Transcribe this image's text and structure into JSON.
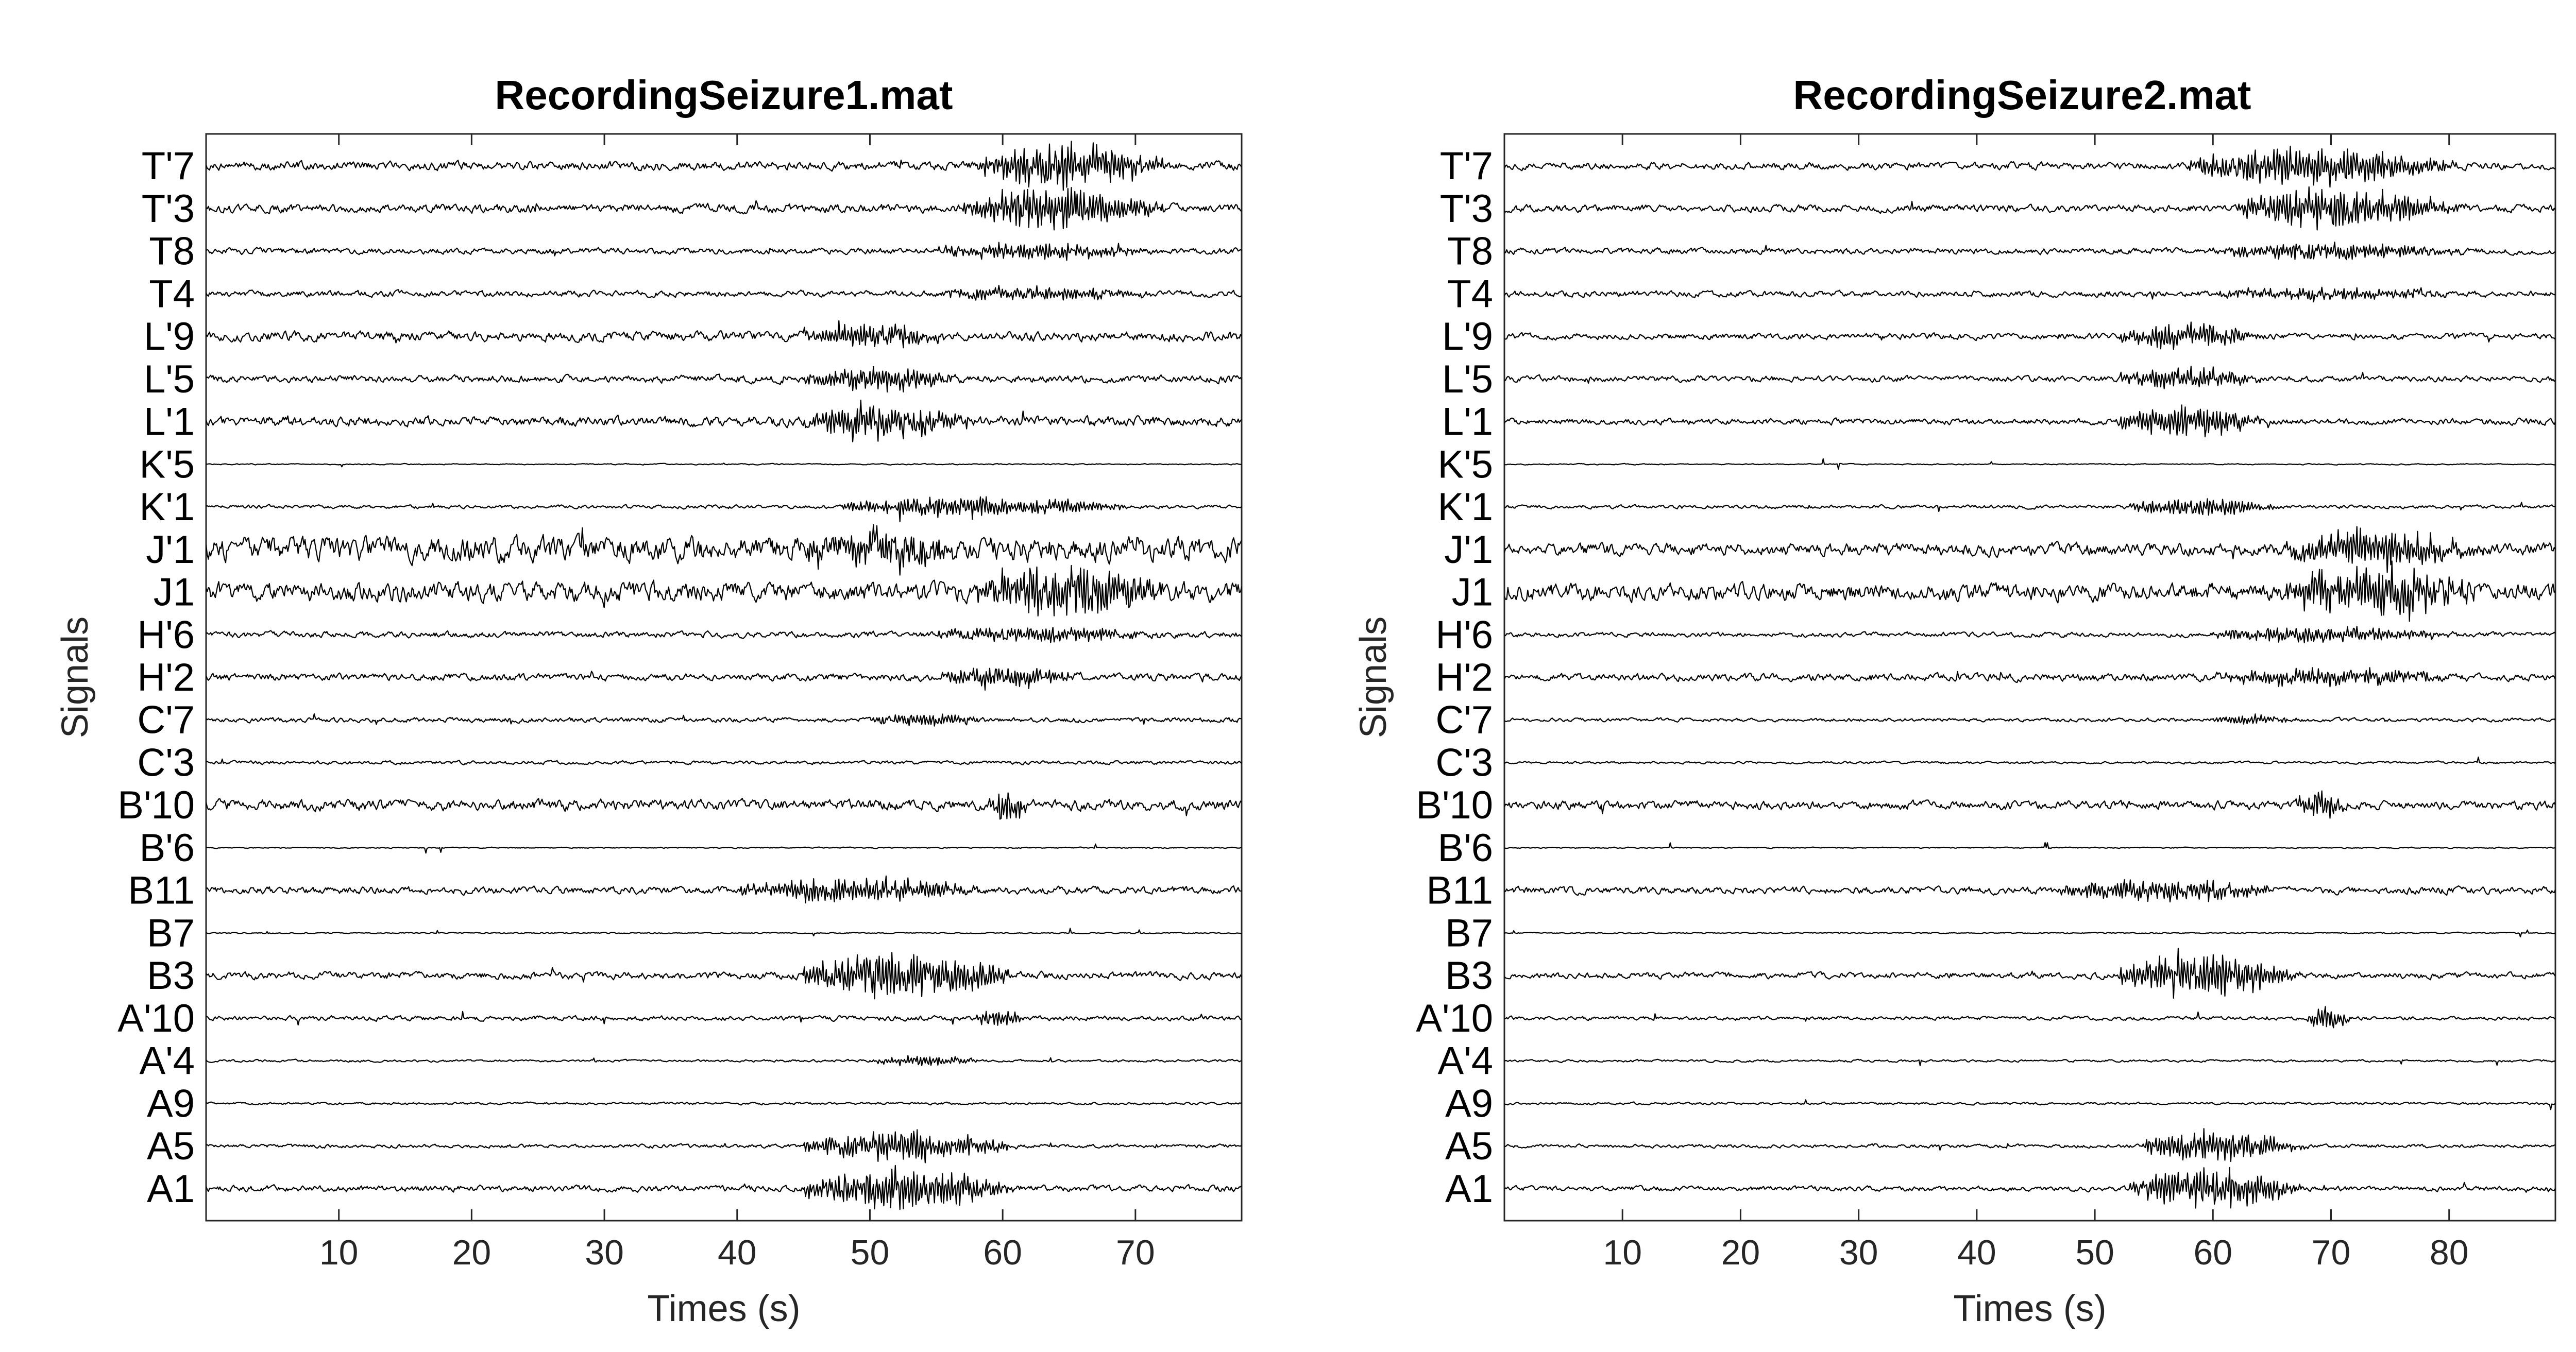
{
  "chart_data": [
    {
      "type": "line",
      "title": "RecordingSeizure1.mat",
      "xlabel": "Times (s)",
      "ylabel": "Signals",
      "xlim": [
        0,
        78
      ],
      "xticks": [
        10,
        20,
        30,
        40,
        50,
        60,
        70
      ],
      "channels": [
        "T'7",
        "T'3",
        "T8",
        "T4",
        "L'9",
        "L'5",
        "L'1",
        "K'5",
        "K'1",
        "J'1",
        "J1",
        "H'6",
        "H'2",
        "C'7",
        "C'3",
        "B'10",
        "B'6",
        "B11",
        "B7",
        "B3",
        "A'10",
        "A'4",
        "A9",
        "A5",
        "A1"
      ],
      "seizure_onset_s": 45,
      "seizure_end_s": 67,
      "channel_activity": [
        {
          "channel": "T'7",
          "baseline": 0.35,
          "burst": [
            58,
            78
          ],
          "burst_amp": 1.4
        },
        {
          "channel": "T'3",
          "baseline": 0.35,
          "burst": [
            57,
            78
          ],
          "burst_amp": 1.3
        },
        {
          "channel": "T8",
          "baseline": 0.25,
          "burst": [
            55,
            78
          ],
          "burst_amp": 0.5
        },
        {
          "channel": "T4",
          "baseline": 0.25,
          "burst": [
            55,
            78
          ],
          "burst_amp": 0.4
        },
        {
          "channel": "L'9",
          "baseline": 0.4,
          "burst": [
            45,
            60
          ],
          "burst_amp": 0.9
        },
        {
          "channel": "L'5",
          "baseline": 0.3,
          "burst": [
            45,
            62
          ],
          "burst_amp": 0.7
        },
        {
          "channel": "L'1",
          "baseline": 0.4,
          "burst": [
            45,
            62
          ],
          "burst_amp": 1.1
        },
        {
          "channel": "K'5",
          "baseline": 0.05,
          "burst": [
            0,
            0
          ],
          "burst_amp": 0
        },
        {
          "channel": "K'1",
          "baseline": 0.15,
          "burst": [
            48,
            78
          ],
          "burst_amp": 0.7
        },
        {
          "channel": "J'1",
          "baseline": 1.0,
          "burst": [
            45,
            62
          ],
          "burst_amp": 1.1
        },
        {
          "channel": "J1",
          "baseline": 0.8,
          "burst": [
            58,
            78
          ],
          "burst_amp": 1.6
        },
        {
          "channel": "H'6",
          "baseline": 0.25,
          "burst": [
            55,
            78
          ],
          "burst_amp": 0.5
        },
        {
          "channel": "H'2",
          "baseline": 0.3,
          "burst": [
            55,
            70
          ],
          "burst_amp": 0.6
        },
        {
          "channel": "C'7",
          "baseline": 0.2,
          "burst": [
            50,
            62
          ],
          "burst_amp": 0.4
        },
        {
          "channel": "C'3",
          "baseline": 0.15,
          "burst": [
            0,
            0
          ],
          "burst_amp": 0
        },
        {
          "channel": "B'10",
          "baseline": 0.45,
          "burst": [
            59,
            63
          ],
          "burst_amp": 1.0
        },
        {
          "channel": "B'6",
          "baseline": 0.05,
          "burst": [
            0,
            0
          ],
          "burst_amp": 0
        },
        {
          "channel": "B11",
          "baseline": 0.3,
          "burst": [
            40,
            66
          ],
          "burst_amp": 0.8
        },
        {
          "channel": "B7",
          "baseline": 0.05,
          "burst": [
            0,
            0
          ],
          "burst_amp": 0
        },
        {
          "channel": "B3",
          "baseline": 0.3,
          "burst": [
            45,
            67
          ],
          "burst_amp": 1.5
        },
        {
          "channel": "A'10",
          "baseline": 0.2,
          "burst": [
            58,
            63
          ],
          "burst_amp": 0.6
        },
        {
          "channel": "A'4",
          "baseline": 0.1,
          "burst": [
            50,
            62
          ],
          "burst_amp": 0.3
        },
        {
          "channel": "A9",
          "baseline": 0.1,
          "burst": [
            0,
            0
          ],
          "burst_amp": 0
        },
        {
          "channel": "A5",
          "baseline": 0.15,
          "burst": [
            45,
            67
          ],
          "burst_amp": 1.0
        },
        {
          "channel": "A1",
          "baseline": 0.25,
          "burst": [
            45,
            67
          ],
          "burst_amp": 1.3
        }
      ]
    },
    {
      "type": "line",
      "title": "RecordingSeizure2.mat",
      "xlabel": "Times (s)",
      "ylabel": "Signals",
      "xlim": [
        0,
        89
      ],
      "xticks": [
        10,
        20,
        30,
        40,
        50,
        60,
        70,
        80
      ],
      "channels": [
        "T'7",
        "T'3",
        "T8",
        "T4",
        "L'9",
        "L'5",
        "L'1",
        "K'5",
        "K'1",
        "J'1",
        "J1",
        "H'6",
        "H'2",
        "C'7",
        "C'3",
        "B'10",
        "B'6",
        "B11",
        "B7",
        "B3",
        "A'10",
        "A'4",
        "A9",
        "A5",
        "A1"
      ],
      "seizure_onset_s": 53,
      "seizure_end_s": 73,
      "channel_activity": [
        {
          "channel": "T'7",
          "baseline": 0.3,
          "burst": [
            58,
            89
          ],
          "burst_amp": 1.3
        },
        {
          "channel": "T'3",
          "baseline": 0.3,
          "burst": [
            62,
            89
          ],
          "burst_amp": 1.3
        },
        {
          "channel": "T8",
          "baseline": 0.25,
          "burst": [
            60,
            89
          ],
          "burst_amp": 0.5
        },
        {
          "channel": "T4",
          "baseline": 0.25,
          "burst": [
            60,
            89
          ],
          "burst_amp": 0.4
        },
        {
          "channel": "L'9",
          "baseline": 0.25,
          "burst": [
            52,
            69
          ],
          "burst_amp": 0.8
        },
        {
          "channel": "L'5",
          "baseline": 0.25,
          "burst": [
            52,
            69
          ],
          "burst_amp": 0.7
        },
        {
          "channel": "L'1",
          "baseline": 0.25,
          "burst": [
            52,
            69
          ],
          "burst_amp": 1.0
        },
        {
          "channel": "K'5",
          "baseline": 0.05,
          "burst": [
            0,
            0
          ],
          "burst_amp": 0
        },
        {
          "channel": "K'1",
          "baseline": 0.15,
          "burst": [
            53,
            70
          ],
          "burst_amp": 0.6
        },
        {
          "channel": "J'1",
          "baseline": 0.5,
          "burst": [
            66,
            89
          ],
          "burst_amp": 1.2
        },
        {
          "channel": "J1",
          "baseline": 0.7,
          "burst": [
            66,
            89
          ],
          "burst_amp": 1.6
        },
        {
          "channel": "H'6",
          "baseline": 0.2,
          "burst": [
            60,
            89
          ],
          "burst_amp": 0.5
        },
        {
          "channel": "H'2",
          "baseline": 0.3,
          "burst": [
            60,
            89
          ],
          "burst_amp": 0.5
        },
        {
          "channel": "C'7",
          "baseline": 0.15,
          "burst": [
            60,
            70
          ],
          "burst_amp": 0.3
        },
        {
          "channel": "C'3",
          "baseline": 0.1,
          "burst": [
            0,
            0
          ],
          "burst_amp": 0
        },
        {
          "channel": "B'10",
          "baseline": 0.35,
          "burst": [
            67,
            73
          ],
          "burst_amp": 1.0
        },
        {
          "channel": "B'6",
          "baseline": 0.05,
          "burst": [
            0,
            0
          ],
          "burst_amp": 0
        },
        {
          "channel": "B11",
          "baseline": 0.3,
          "burst": [
            47,
            73
          ],
          "burst_amp": 0.7
        },
        {
          "channel": "B7",
          "baseline": 0.05,
          "burst": [
            0,
            0
          ],
          "burst_amp": 0
        },
        {
          "channel": "B3",
          "baseline": 0.25,
          "burst": [
            52,
            73
          ],
          "burst_amp": 1.5
        },
        {
          "channel": "A'10",
          "baseline": 0.15,
          "burst": [
            68,
            73
          ],
          "burst_amp": 0.8
        },
        {
          "channel": "A'4",
          "baseline": 0.1,
          "burst": [
            0,
            0
          ],
          "burst_amp": 0
        },
        {
          "channel": "A9",
          "baseline": 0.1,
          "burst": [
            0,
            0
          ],
          "burst_amp": 0
        },
        {
          "channel": "A5",
          "baseline": 0.15,
          "burst": [
            54,
            73
          ],
          "burst_amp": 1.0
        },
        {
          "channel": "A1",
          "baseline": 0.2,
          "burst": [
            53,
            73
          ],
          "burst_amp": 1.3
        }
      ]
    }
  ]
}
